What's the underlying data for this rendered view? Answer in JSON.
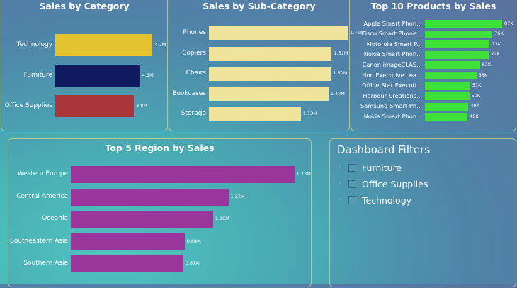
{
  "colors": {
    "category_bars": [
      "#e4c333",
      "#0f1b5e",
      "#a8363b"
    ],
    "subcategory_bar": "#f0e39c",
    "products_bar": "#3ee03a",
    "region_bar": "#9a359c"
  },
  "panels": {
    "category": {
      "title": "Sales by Category"
    },
    "subcategory": {
      "title": "Sales by Sub-Category"
    },
    "products": {
      "title": "Top 10 Products by Sales"
    },
    "region": {
      "title": "Top 5 Region by Sales"
    }
  },
  "filters": {
    "title": "Dashboard Filters",
    "items": [
      {
        "label": "Furniture",
        "checked": false
      },
      {
        "label": "Office Supplies",
        "checked": false
      },
      {
        "label": "Technology",
        "checked": false
      }
    ]
  },
  "chart_data": [
    {
      "type": "bar",
      "title": "Sales by Category",
      "orientation": "horizontal",
      "categories": [
        "Technology",
        "Furniture",
        "Office Supplies"
      ],
      "values": [
        4.7,
        4.1,
        3.8
      ],
      "data_labels": [
        "4.7M",
        "4.1M",
        "3.8M"
      ],
      "xlim": [
        0,
        5.2
      ]
    },
    {
      "type": "bar",
      "title": "Sales by Sub-Category",
      "orientation": "horizontal",
      "categories": [
        "Phones",
        "Copiers",
        "Chairs",
        "Bookcases",
        "Storage"
      ],
      "values": [
        1.71,
        1.51,
        1.5,
        1.47,
        1.13
      ],
      "data_labels": [
        "1.71M",
        "1.51M",
        "1.50M",
        "1.47M",
        "1.13M"
      ],
      "xlim": [
        0,
        1.95
      ]
    },
    {
      "type": "bar",
      "title": "Top 10 Products by Sales",
      "orientation": "horizontal",
      "categories": [
        "Apple Smart Phon...",
        "Cisco Smart Phone...",
        "Motorola Smart P...",
        "Nokia Smart Phon...",
        "Canon imageCLAS...",
        "Hon Executive Lea...",
        "Office Star Executi...",
        "Harbour Creations...",
        "Samsung Smart Ph...",
        "Nokia Smart Phon..."
      ],
      "values": [
        87,
        76,
        73,
        72,
        62,
        58,
        51,
        50,
        49,
        48
      ],
      "data_labels": [
        "87K",
        "76K",
        "73K",
        "72K",
        "62K",
        "58K",
        "51K",
        "50K",
        "49K",
        "48K"
      ],
      "xlim": [
        0,
        95
      ]
    },
    {
      "type": "bar",
      "title": "Top 5 Region by Sales",
      "orientation": "horizontal",
      "categories": [
        "Western Europe",
        "Central America",
        "Oceania",
        "Southeastern Asia",
        "Southern Asia"
      ],
      "values": [
        1.73,
        1.22,
        1.1,
        0.88,
        0.87
      ],
      "data_labels": [
        "1.73M",
        "1.22M",
        "1.10M",
        "0.88M",
        "0.87M"
      ],
      "xlim": [
        0,
        2.0
      ]
    }
  ]
}
